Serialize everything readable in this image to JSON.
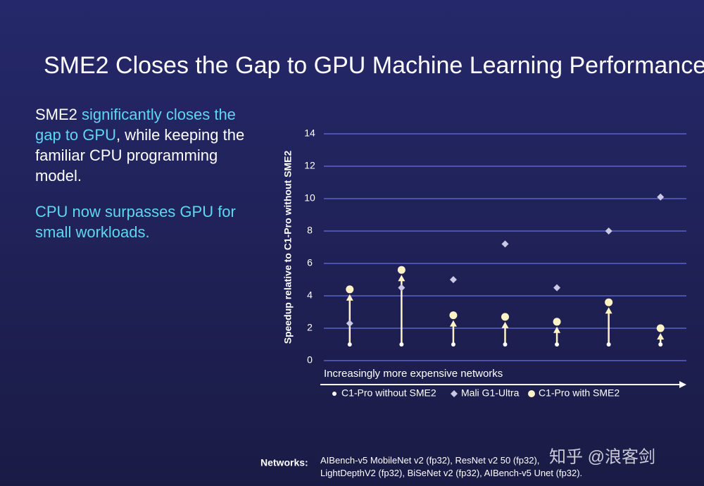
{
  "title": "SME2 Closes the Gap to GPU Machine Learning Performance",
  "body": [
    [
      {
        "text": "SME2 ",
        "accent": false
      },
      {
        "text": "significantly closes the gap to GPU",
        "accent": true
      },
      {
        "text": ", while keeping the familiar CPU programming model.",
        "accent": false
      }
    ],
    [
      {
        "text": "CPU now surpasses GPU for small workloads.",
        "accent": true
      }
    ]
  ],
  "chart_data": {
    "type": "dot",
    "ylabel": "Speedup relative to C1-Pro without SME2",
    "xlabel": "Increasingly more expensive networks",
    "categories": [
      null,
      null,
      null,
      null,
      null,
      null,
      null
    ],
    "series": [
      {
        "name": "C1-Pro without SME2",
        "color": "#ffffff",
        "values": [
          1,
          1,
          1,
          1,
          1,
          1,
          1
        ]
      },
      {
        "name": "Mali G1-Ultra",
        "color": "#c9c9e6",
        "values": [
          2.3,
          4.5,
          5.0,
          7.2,
          4.5,
          8.0,
          10.1
        ]
      },
      {
        "name": "C1-Pro with SME2",
        "color": "#fff2c4",
        "values": [
          4.4,
          5.6,
          2.8,
          2.7,
          2.4,
          3.6,
          2.0
        ]
      }
    ],
    "ylim": [
      0,
      14
    ],
    "yticks": [
      0,
      2,
      4,
      6,
      8,
      10,
      12,
      14
    ],
    "grid": true
  },
  "footnote": {
    "label": "Networks:",
    "text": "AIBench-v5 MobileNet v2 (fp32), ResNet v2 50 (fp32), LightDepthV2 (fp32), BiSeNet v2 (fp32), AIBench-v5 Unet (fp32)."
  },
  "watermark": "知乎 @浪客剑"
}
